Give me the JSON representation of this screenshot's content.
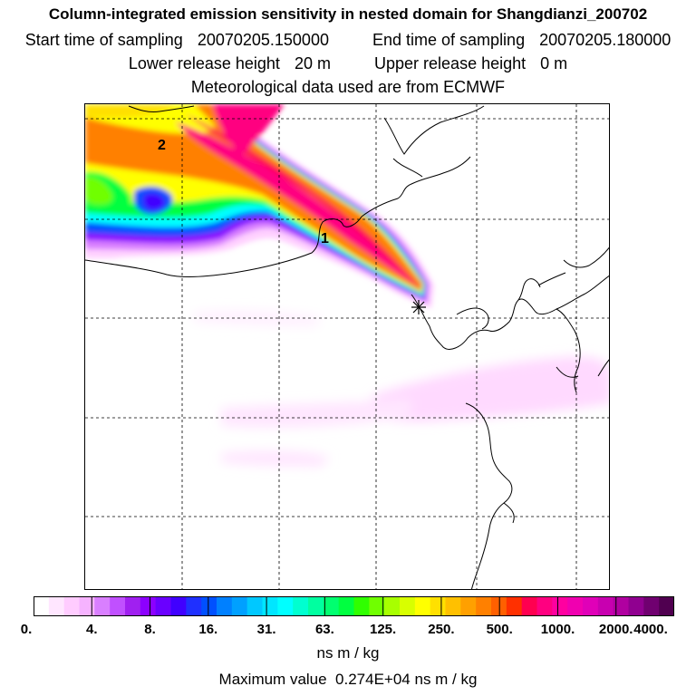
{
  "title": {
    "line1": "Column-integrated emission sensitivity in nested domain for Shangdianzi_200702",
    "start_label": "Start time of sampling",
    "start_value": "20070205.150000",
    "end_label": "End time of sampling",
    "end_value": "20070205.180000",
    "lower_label": "Lower release height",
    "lower_value": "20 m",
    "upper_label": "Upper release height",
    "upper_value": "0 m",
    "line4": "Meteorological data used are from ECMWF"
  },
  "map": {
    "markers": [
      {
        "label": "1"
      },
      {
        "label": "2"
      }
    ],
    "receptor": "receptor-star",
    "colors": {
      "coast": "#000000",
      "grid": "#000000"
    }
  },
  "colorbar": {
    "tick_labels": [
      "0.",
      "4.",
      "8.",
      "16.",
      "31.",
      "63.",
      "125.",
      "250.",
      "500.",
      "1000.",
      "2000.",
      "4000."
    ],
    "colors": [
      "#ffffff",
      "#ffe6ff",
      "#ffccff",
      "#f6b3ff",
      "#d97fff",
      "#c050ff",
      "#a020f0",
      "#8c00ff",
      "#6a00ff",
      "#4000ff",
      "#1f30ff",
      "#0050ff",
      "#0080ff",
      "#00a0ff",
      "#00c8ff",
      "#00e6ff",
      "#00ffff",
      "#00ffd0",
      "#00ffa0",
      "#00ff70",
      "#00ff40",
      "#30ff00",
      "#70ff00",
      "#a8ff00",
      "#d8ff00",
      "#ffff00",
      "#ffe000",
      "#ffc000",
      "#ffa000",
      "#ff8000",
      "#ff6000",
      "#ff3000",
      "#ff0050",
      "#ff0080",
      "#ff00a0",
      "#f000b0",
      "#e000b8",
      "#c800b0",
      "#b000a0",
      "#900090",
      "#700070",
      "#500050"
    ],
    "unit": "ns m / kg",
    "max_label": "Maximum value",
    "max_value": "0.274E+04 ns m / kg"
  }
}
